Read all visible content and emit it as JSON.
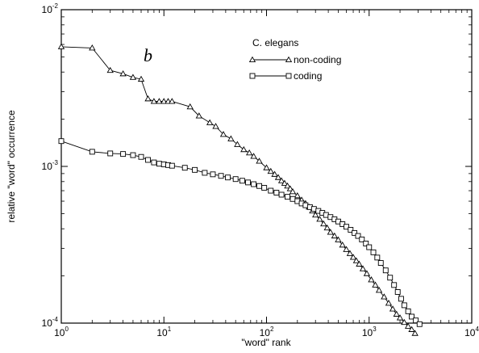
{
  "chart_data": {
    "type": "line",
    "panel_label": "b",
    "xlabel": "\"word\" rank",
    "ylabel": "relative \"word\" occurrence",
    "xscale": "log",
    "yscale": "log",
    "xlim": [
      1,
      10000
    ],
    "ylim": [
      0.0001,
      0.01
    ],
    "x_ticks": [
      {
        "value": 1,
        "base": "10",
        "exp": "0"
      },
      {
        "value": 10,
        "base": "10",
        "exp": "1"
      },
      {
        "value": 100,
        "base": "10",
        "exp": "2"
      },
      {
        "value": 1000,
        "base": "10",
        "exp": "3"
      },
      {
        "value": 10000,
        "base": "10",
        "exp": "4"
      }
    ],
    "y_ticks": [
      {
        "value": 0.0001,
        "base": "10",
        "exp": "-4"
      },
      {
        "value": 0.001,
        "base": "10",
        "exp": "-3"
      },
      {
        "value": 0.01,
        "base": "10",
        "exp": "-2"
      }
    ],
    "legend": {
      "title": "C. elegans",
      "position": "top-right"
    },
    "grid": false,
    "series": [
      {
        "name": "non-coding",
        "marker": "triangle",
        "x": [
          1,
          2,
          3,
          4,
          5,
          6,
          7,
          8,
          9,
          10,
          11,
          12,
          18,
          22,
          28,
          32,
          38,
          45,
          52,
          60,
          68,
          75,
          85,
          100,
          110,
          120,
          130,
          140,
          150,
          160,
          170,
          180,
          200,
          220,
          240,
          260,
          280,
          300,
          330,
          360,
          390,
          420,
          460,
          500,
          550,
          600,
          650,
          700,
          750,
          800,
          870,
          950,
          1050,
          1150,
          1250,
          1400,
          1550,
          1700,
          1850,
          2000,
          2200,
          2400,
          2600,
          2800
        ],
        "values": [
          0.0058,
          0.0057,
          0.0041,
          0.0039,
          0.0037,
          0.0036,
          0.0027,
          0.0026,
          0.0026,
          0.0026,
          0.0026,
          0.0026,
          0.0024,
          0.0021,
          0.0019,
          0.0018,
          0.0016,
          0.0015,
          0.00138,
          0.00128,
          0.00122,
          0.00116,
          0.00108,
          0.00098,
          0.00093,
          0.00089,
          0.00085,
          0.00081,
          0.00078,
          0.00075,
          0.00072,
          0.00069,
          0.00065,
          0.00061,
          0.00058,
          0.00055,
          0.00052,
          0.00049,
          0.00046,
          0.00043,
          0.000405,
          0.00038,
          0.00036,
          0.00034,
          0.000315,
          0.000295,
          0.000278,
          0.000263,
          0.00025,
          0.000238,
          0.000222,
          0.000207,
          0.000189,
          0.000175,
          0.000162,
          0.000147,
          0.000134,
          0.000123,
          0.000114,
          0.000108,
          0.000101,
          9.55e-05,
          9.1e-05,
          8.6e-05
        ]
      },
      {
        "name": "coding",
        "marker": "square",
        "x": [
          1,
          2,
          3,
          4,
          5,
          6,
          7,
          8,
          9,
          10,
          11,
          12,
          16,
          20,
          25,
          30,
          36,
          42,
          50,
          58,
          66,
          75,
          85,
          95,
          110,
          125,
          140,
          160,
          180,
          200,
          220,
          240,
          265,
          290,
          320,
          350,
          380,
          420,
          460,
          500,
          550,
          600,
          660,
          720,
          780,
          850,
          930,
          1000,
          1100,
          1200,
          1300,
          1450,
          1600,
          1750,
          1900,
          2050,
          2200,
          2400,
          2600,
          2850,
          3100
        ],
        "values": [
          0.00145,
          0.00124,
          0.00121,
          0.0012,
          0.00118,
          0.00115,
          0.0011,
          0.00106,
          0.00104,
          0.00103,
          0.00102,
          0.00101,
          0.00098,
          0.00095,
          0.00091,
          0.00089,
          0.00087,
          0.00085,
          0.00083,
          0.00081,
          0.00079,
          0.00077,
          0.00075,
          0.00073,
          0.0007,
          0.00068,
          0.00066,
          0.00064,
          0.00062,
          0.0006,
          0.00058,
          0.000565,
          0.00055,
          0.000535,
          0.00052,
          0.000505,
          0.00049,
          0.000475,
          0.00046,
          0.000445,
          0.000428,
          0.000412,
          0.000394,
          0.000376,
          0.00036,
          0.000342,
          0.000322,
          0.000305,
          0.000283,
          0.000262,
          0.000242,
          0.000217,
          0.000195,
          0.000175,
          0.000158,
          0.000143,
          0.00013,
          0.000119,
          0.00011,
          0.000104,
          9.85e-05
        ]
      }
    ]
  }
}
